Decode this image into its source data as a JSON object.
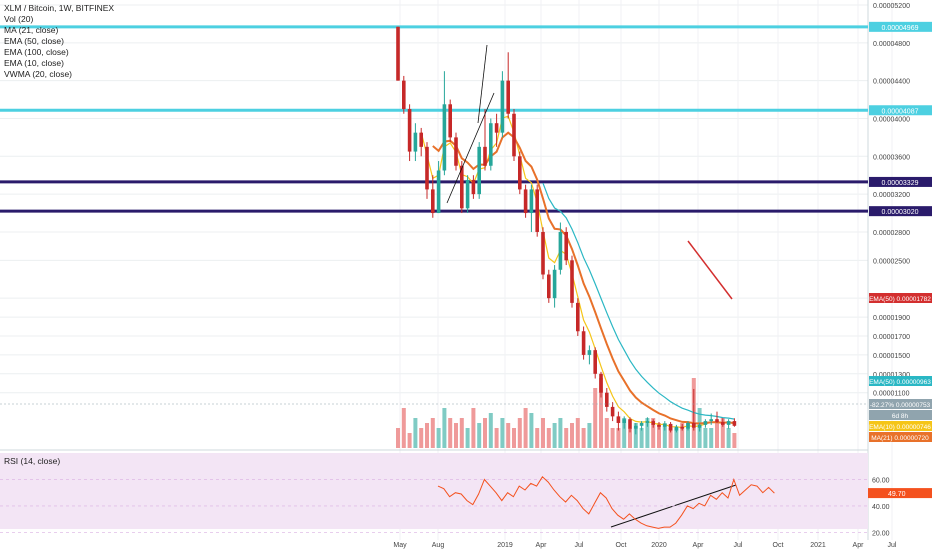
{
  "header": {
    "symbol": "XLM / Bitcoin, 1W, BITFINEX",
    "indicators": [
      "Vol (20)",
      "MA (21, close)",
      "EMA (50, close)",
      "EMA (100, close)",
      "EMA (10, close)",
      "VWMA (20, close)"
    ],
    "rsi_label": "RSI (14, close)"
  },
  "colors": {
    "up": "#26a69a",
    "down": "#c62828",
    "vol_up": "#80cbc4",
    "vol_down": "#ef9a9a",
    "cyan_line": "#4dd0e1",
    "navy_line": "#2a1b6b",
    "ema_cyan": "#2ab7c4",
    "ema_orange": "#e8712a",
    "ema_yellow": "#f5c518",
    "red_line": "#d32f2f",
    "rsi_line": "#f4511e",
    "rsi_band": "#f3e5f5"
  },
  "chart_data": {
    "type": "candlestick",
    "title": "XLM / Bitcoin, 1W, BITFINEX",
    "x_ticks": [
      "May",
      "Aug",
      "2019",
      "Apr",
      "Jul",
      "Oct",
      "2020",
      "Apr",
      "Jul",
      "Oct",
      "2021",
      "Apr",
      "Jul"
    ],
    "y_ticks": [
      "0.00005200",
      "0.00004800",
      "0.00004400",
      "0.00004000",
      "0.00003600",
      "0.00003200",
      "0.00002800",
      "0.00002500",
      "0.00002100",
      "0.00001900",
      "0.00001700",
      "0.00001500",
      "0.00001300",
      "0.00001100"
    ],
    "horizontal_lines": [
      {
        "value": 4.969e-05,
        "label": "0.00004969",
        "color": "cyan"
      },
      {
        "value": 4.087e-05,
        "label": "0.00004087",
        "color": "cyan"
      },
      {
        "value": 3.329e-05,
        "label": "0.00003329",
        "color": "navy"
      },
      {
        "value": 3.02e-05,
        "label": "0.00003020",
        "color": "navy"
      }
    ],
    "price_labels": [
      {
        "name": "EMA",
        "value": "0.00001782",
        "display": "EMA(50) 0.00001782"
      },
      {
        "name": "EMA",
        "value": "0.00000963",
        "display": "EMA(50) 0.00000963"
      },
      {
        "name": "price",
        "value": "0.00000753",
        "display": "-82.27% 0.00000753"
      },
      {
        "name": "timer",
        "value": "6d 8h",
        "display": "6d 8h"
      },
      {
        "name": "EMA",
        "value": "0.00000746",
        "display": "EMA(10) 0.00000746"
      },
      {
        "name": "MA",
        "value": "0.00000720",
        "display": "MA(21) 0.00000720"
      }
    ],
    "rsi": {
      "label": "RSI (14, close)",
      "value": "49.70",
      "y_ticks": [
        "60.00",
        "40.00",
        "20.00"
      ],
      "band": [
        30,
        70
      ]
    },
    "candles": [
      [
        4.97e-05,
        4.97e-05,
        4.4e-05,
        4.4e-05
      ],
      [
        4.4e-05,
        4.45e-05,
        4.05e-05,
        4.1e-05
      ],
      [
        4.1e-05,
        4.15e-05,
        3.55e-05,
        3.65e-05
      ],
      [
        3.65e-05,
        3.95e-05,
        3.55e-05,
        3.85e-05
      ],
      [
        3.85e-05,
        3.9e-05,
        3.6e-05,
        3.7e-05
      ],
      [
        3.7e-05,
        3.75e-05,
        3.15e-05,
        3.25e-05
      ],
      [
        3.25e-05,
        3.4e-05,
        2.95e-05,
        3e-05
      ],
      [
        3e-05,
        3.55e-05,
        3e-05,
        3.45e-05
      ],
      [
        3.45e-05,
        4.5e-05,
        3.4e-05,
        4.15e-05
      ],
      [
        4.15e-05,
        4.2e-05,
        3.75e-05,
        3.8e-05
      ],
      [
        3.8e-05,
        3.85e-05,
        3.45e-05,
        3.5e-05
      ],
      [
        3.5e-05,
        3.55e-05,
        3e-05,
        3.05e-05
      ],
      [
        3.05e-05,
        3.4e-05,
        3e-05,
        3.35e-05
      ],
      [
        3.35e-05,
        3.4e-05,
        3.15e-05,
        3.2e-05
      ],
      [
        3.2e-05,
        3.75e-05,
        3.15e-05,
        3.7e-05
      ],
      [
        3.7e-05,
        4.1e-05,
        3.45e-05,
        3.5e-05
      ],
      [
        3.5e-05,
        4e-05,
        3.45e-05,
        3.95e-05
      ],
      [
        3.95e-05,
        4.05e-05,
        3.7e-05,
        3.85e-05
      ],
      [
        3.85e-05,
        4.5e-05,
        3.8e-05,
        4.4e-05
      ],
      [
        4.4e-05,
        4.7e-05,
        4e-05,
        4.05e-05
      ],
      [
        4.05e-05,
        4.1e-05,
        3.55e-05,
        3.6e-05
      ],
      [
        3.6e-05,
        3.65e-05,
        3.2e-05,
        3.25e-05
      ],
      [
        3.25e-05,
        3.3e-05,
        2.95e-05,
        3e-05
      ],
      [
        3e-05,
        3.3e-05,
        2.8e-05,
        3.25e-05
      ],
      [
        3.25e-05,
        3.3e-05,
        2.75e-05,
        2.8e-05
      ],
      [
        2.8e-05,
        2.85e-05,
        2.3e-05,
        2.35e-05
      ],
      [
        2.35e-05,
        2.4e-05,
        2.05e-05,
        2.1e-05
      ],
      [
        2.1e-05,
        2.45e-05,
        2e-05,
        2.4e-05
      ],
      [
        2.4e-05,
        2.9e-05,
        2.35e-05,
        2.8e-05
      ],
      [
        2.8e-05,
        2.85e-05,
        2.45e-05,
        2.5e-05
      ],
      [
        2.5e-05,
        2.55e-05,
        2e-05,
        2.05e-05
      ],
      [
        2.05e-05,
        2.1e-05,
        1.7e-05,
        1.75e-05
      ],
      [
        1.75e-05,
        1.8e-05,
        1.45e-05,
        1.5e-05
      ],
      [
        1.5e-05,
        1.6e-05,
        1.4e-05,
        1.55e-05
      ],
      [
        1.55e-05,
        1.58e-05,
        1.25e-05,
        1.3e-05
      ],
      [
        1.3e-05,
        1.32e-05,
        1.05e-05,
        1.1e-05
      ],
      [
        1.1e-05,
        1.15e-05,
        9e-06,
        9.5e-06
      ],
      [
        9.5e-06,
        1e-05,
        8e-06,
        8.5e-06
      ],
      [
        8.5e-06,
        9e-06,
        7e-06,
        7.8e-06
      ],
      [
        7.8e-06,
        8.5e-06,
        7.2e-06,
        8.2e-06
      ],
      [
        8.2e-06,
        8.4e-06,
        6.8e-06,
        7.2e-06
      ],
      [
        7.2e-06,
        7.8e-06,
        6.6e-06,
        7.5e-06
      ],
      [
        7.5e-06,
        8e-06,
        7e-06,
        7.8e-06
      ],
      [
        7.8e-06,
        8.4e-06,
        7.4e-06,
        8e-06
      ],
      [
        8e-06,
        8.2e-06,
        7.3e-06,
        7.6e-06
      ],
      [
        7.6e-06,
        7.9e-06,
        7.1e-06,
        7.4e-06
      ],
      [
        7.4e-06,
        8e-06,
        7e-06,
        7.7e-06
      ],
      [
        7.7e-06,
        7.9e-06,
        6.8e-06,
        7e-06
      ],
      [
        7e-06,
        7.6e-06,
        6.8e-06,
        7.4e-06
      ],
      [
        7.4e-06,
        7.7e-06,
        7e-06,
        7.2e-06
      ],
      [
        7.2e-06,
        8e-06,
        7e-06,
        7.8e-06
      ],
      [
        7.8e-06,
        1.14e-05,
        7e-06,
        7.3e-06
      ],
      [
        7.3e-06,
        7.8e-06,
        6.9e-06,
        7.6e-06
      ],
      [
        7.6e-06,
        8.2e-06,
        7.3e-06,
        8e-06
      ],
      [
        8e-06,
        8.8e-06,
        7.6e-06,
        8.2e-06
      ],
      [
        8.2e-06,
        9e-06,
        7.8e-06,
        7.9e-06
      ],
      [
        7.9e-06,
        8.3e-06,
        7.4e-06,
        7.6e-06
      ],
      [
        7.6e-06,
        8.2e-06,
        7.2e-06,
        8e-06
      ],
      [
        8e-06,
        8.3e-06,
        7.4e-06,
        7.5e-06
      ]
    ],
    "volume": [
      2,
      4,
      1.5,
      3,
      2,
      2.5,
      3,
      2,
      4,
      3,
      2.5,
      3,
      2,
      4,
      2.5,
      3,
      3.5,
      2,
      3,
      2.5,
      2,
      3,
      4,
      3.5,
      2,
      3,
      2,
      2.5,
      3,
      2,
      2.5,
      3,
      2,
      2.5,
      6,
      7,
      3,
      2,
      2,
      3,
      2,
      2.5,
      2,
      3,
      3,
      2.5,
      2.5,
      2,
      2,
      2.5,
      2.5,
      7,
      4,
      2,
      2,
      2.5,
      3,
      2,
      1.5
    ],
    "rsi_values": [
      55,
      53,
      47,
      50,
      49,
      44,
      41,
      49,
      60,
      55,
      50,
      44,
      50,
      47,
      55,
      52,
      57,
      55,
      62,
      58,
      52,
      47,
      43,
      48,
      44,
      38,
      34,
      42,
      50,
      46,
      38,
      33,
      30,
      34,
      30,
      27,
      25,
      24,
      23,
      24,
      24,
      27,
      33,
      40,
      38,
      42,
      40,
      48,
      45,
      50,
      46,
      60,
      48,
      52,
      56,
      55,
      50,
      54,
      49.7
    ]
  }
}
